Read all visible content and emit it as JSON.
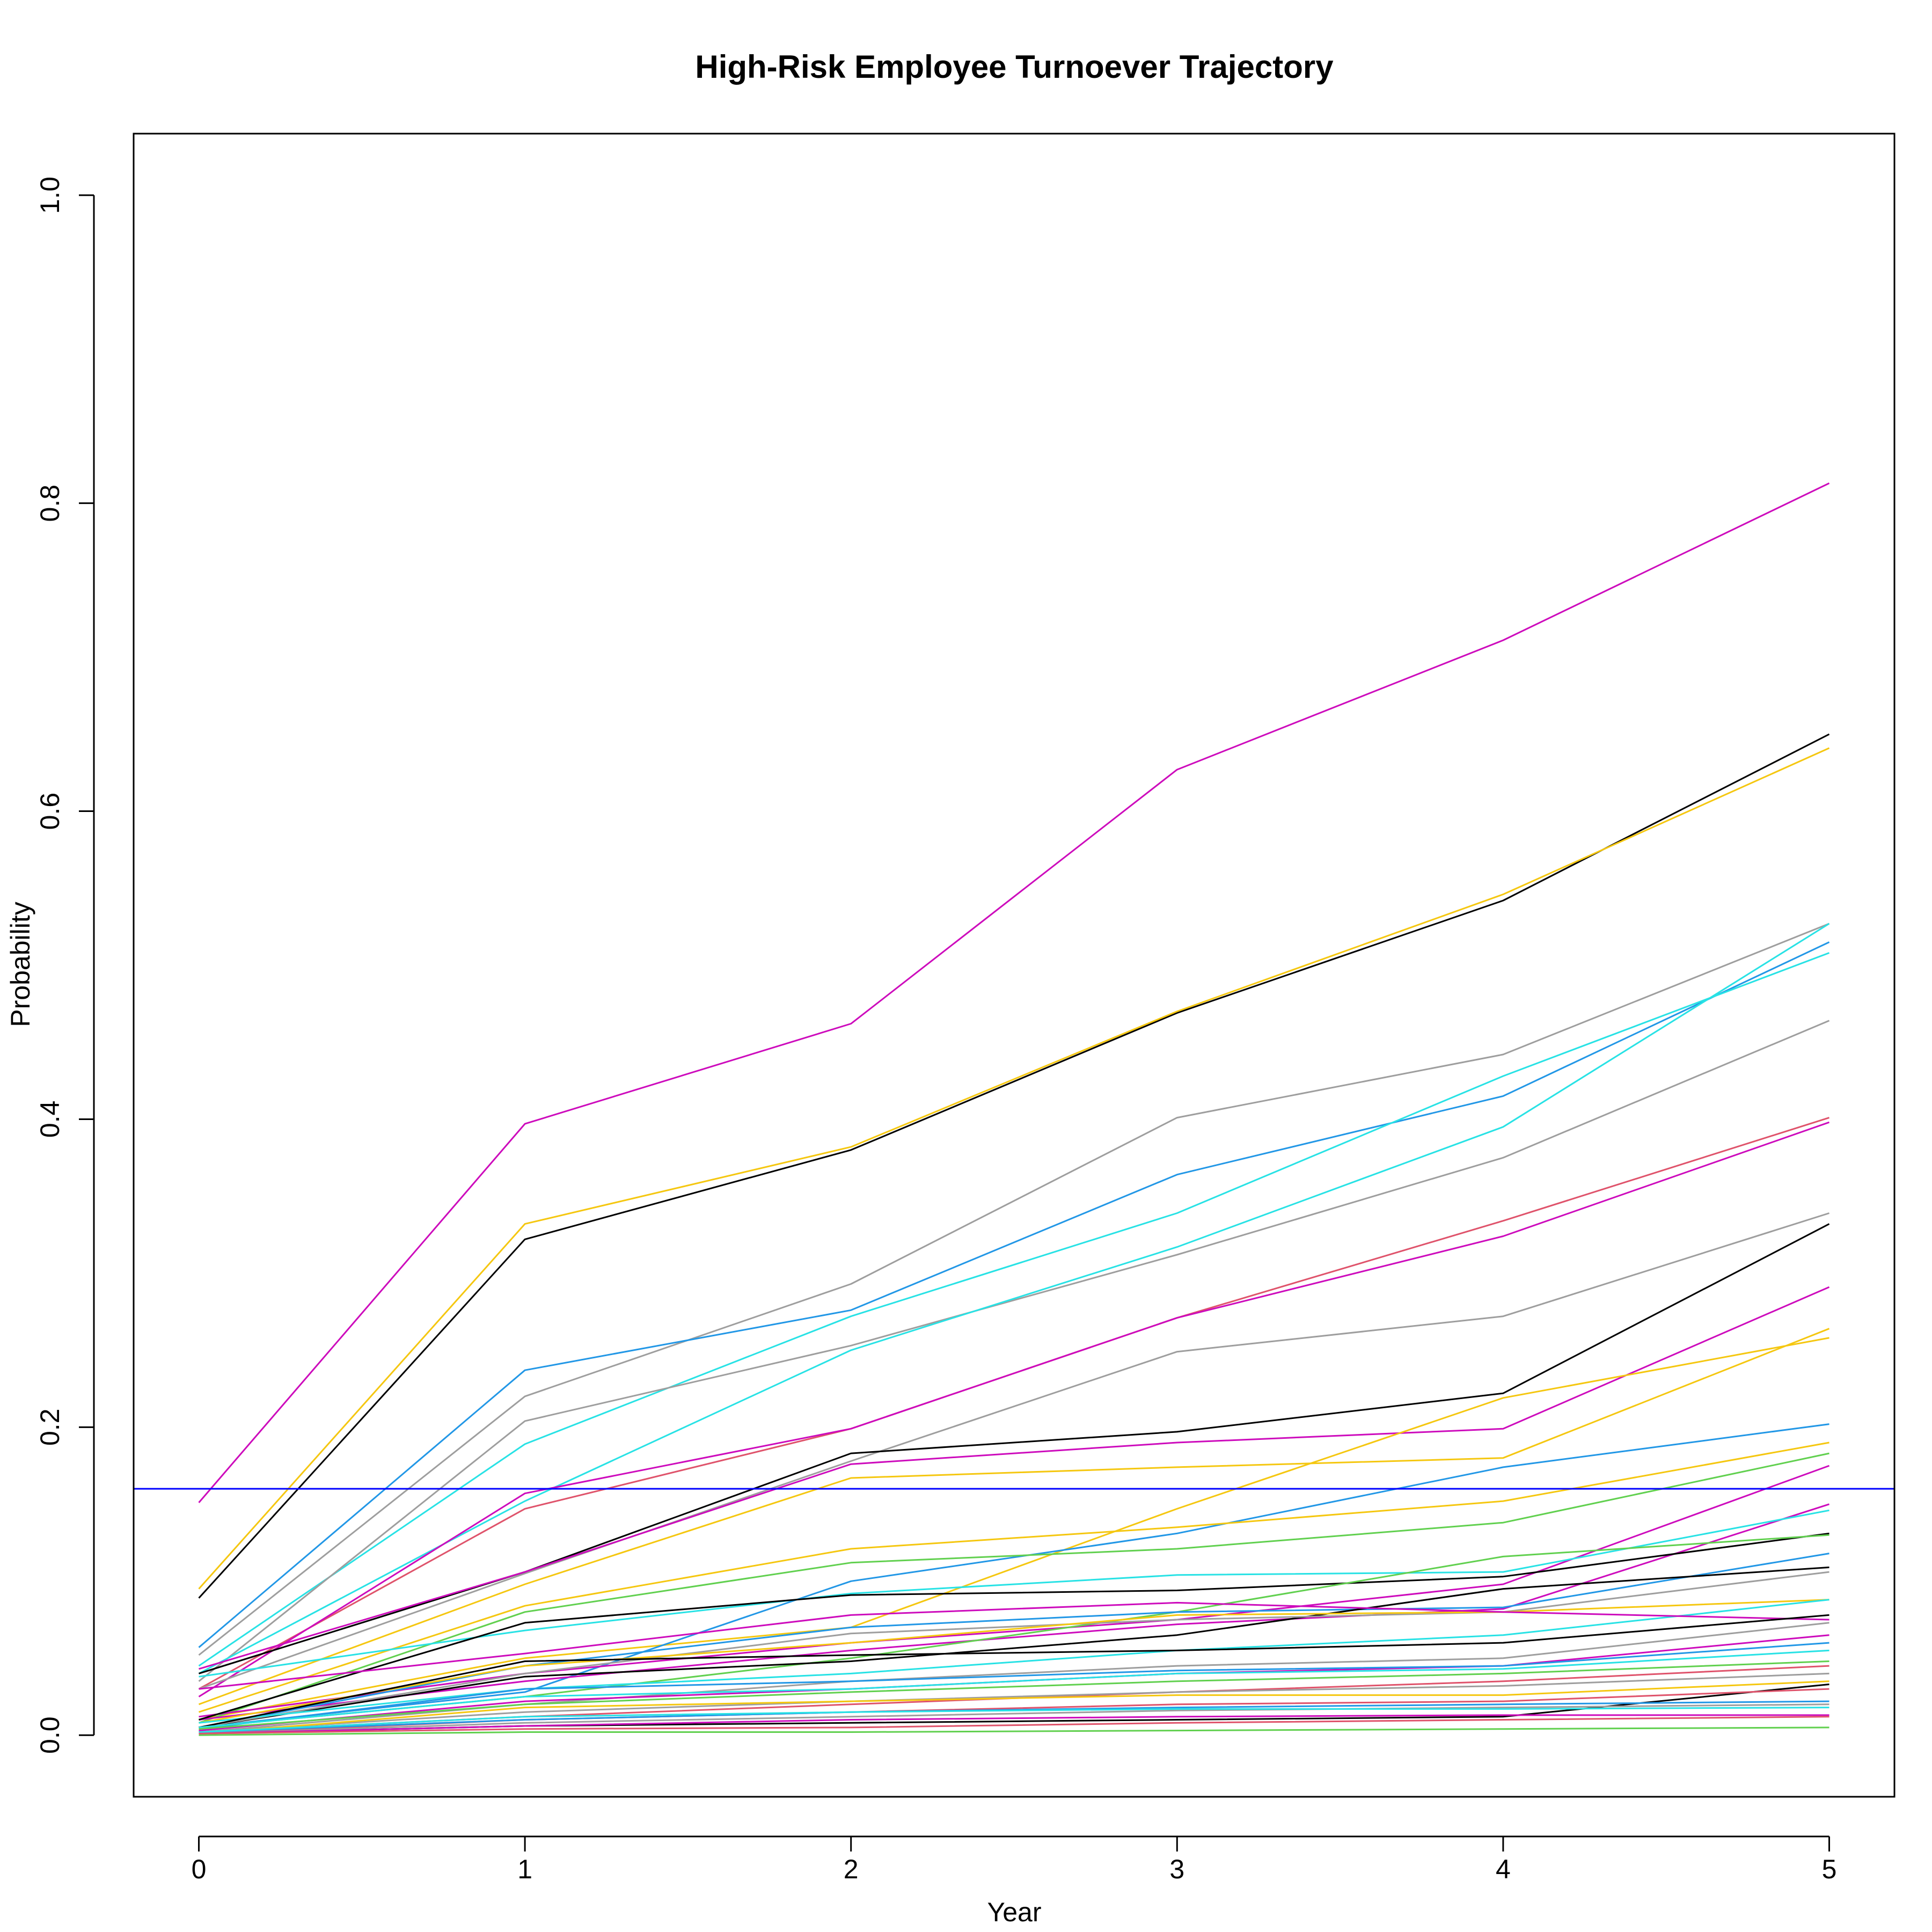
{
  "chart_data": {
    "type": "line",
    "title": "High-Risk Employee Turnoever Trajectory",
    "xlabel": "Year",
    "ylabel": "Probability",
    "xlim": [
      -0.2,
      5.2
    ],
    "ylim": [
      -0.04,
      1.04
    ],
    "x": [
      0,
      1,
      2,
      3,
      4,
      5
    ],
    "xticks": [
      "0",
      "1",
      "2",
      "3",
      "4",
      "5"
    ],
    "yticks": [
      "0.0",
      "0.2",
      "0.4",
      "0.6",
      "0.8",
      "1.0"
    ],
    "grid": false,
    "legend": "none",
    "reference_line": {
      "y": 0.16,
      "color": "#0000ff"
    },
    "series": [
      {
        "color": "#cd0bbc",
        "values": [
          0.151,
          0.397,
          0.462,
          0.627,
          0.711,
          0.813
        ]
      },
      {
        "color": "#000000",
        "values": [
          0.089,
          0.322,
          0.38,
          0.469,
          0.542,
          0.65
        ]
      },
      {
        "color": "#f5c710",
        "values": [
          0.095,
          0.332,
          0.382,
          0.47,
          0.546,
          0.641
        ]
      },
      {
        "color": "#9e9e9e",
        "values": [
          0.052,
          0.22,
          0.293,
          0.401,
          0.442,
          0.527
        ]
      },
      {
        "color": "#2297e6",
        "values": [
          0.057,
          0.237,
          0.276,
          0.364,
          0.415,
          0.515
        ]
      },
      {
        "color": "#28e2e5",
        "values": [
          0.045,
          0.189,
          0.272,
          0.339,
          0.428,
          0.508
        ]
      },
      {
        "color": "#9e9e9e",
        "values": [
          0.035,
          0.204,
          0.253,
          0.312,
          0.375,
          0.464
        ]
      },
      {
        "color": "#28e2e5",
        "values": [
          0.04,
          0.152,
          0.25,
          0.317,
          0.395,
          0.527
        ]
      },
      {
        "color": "#df536b",
        "values": [
          0.03,
          0.147,
          0.199,
          0.271,
          0.334,
          0.401
        ]
      },
      {
        "color": "#cd0bbc",
        "values": [
          0.025,
          0.157,
          0.199,
          0.271,
          0.324,
          0.398
        ]
      },
      {
        "color": "#9e9e9e",
        "values": [
          0.03,
          0.105,
          0.178,
          0.249,
          0.272,
          0.339
        ]
      },
      {
        "color": "#000000",
        "values": [
          0.04,
          0.106,
          0.183,
          0.197,
          0.222,
          0.332
        ]
      },
      {
        "color": "#cd0bbc",
        "values": [
          0.043,
          0.106,
          0.176,
          0.19,
          0.199,
          0.291
        ]
      },
      {
        "color": "#f5c710",
        "values": [
          0.02,
          0.098,
          0.167,
          0.174,
          0.18,
          0.264
        ]
      },
      {
        "color": "#f5c710",
        "values": [
          0.01,
          0.05,
          0.07,
          0.147,
          0.219,
          0.258
        ]
      },
      {
        "color": "#2297e6",
        "values": [
          0.005,
          0.028,
          0.1,
          0.131,
          0.174,
          0.202
        ]
      },
      {
        "color": "#f5c710",
        "values": [
          0.015,
          0.084,
          0.121,
          0.135,
          0.152,
          0.19
        ]
      },
      {
        "color": "#61d04f",
        "values": [
          0.008,
          0.08,
          0.112,
          0.121,
          0.138,
          0.183
        ]
      },
      {
        "color": "#cd0bbc",
        "values": [
          0.012,
          0.04,
          0.06,
          0.075,
          0.098,
          0.175
        ]
      },
      {
        "color": "#cd0bbc",
        "values": [
          0.01,
          0.035,
          0.055,
          0.072,
          0.082,
          0.15
        ]
      },
      {
        "color": "#28e2e5",
        "values": [
          0.038,
          0.068,
          0.092,
          0.104,
          0.106,
          0.146
        ]
      },
      {
        "color": "#000000",
        "values": [
          0.01,
          0.073,
          0.091,
          0.094,
          0.103,
          0.131
        ]
      },
      {
        "color": "#61d04f",
        "values": [
          0.005,
          0.025,
          0.05,
          0.08,
          0.116,
          0.13
        ]
      },
      {
        "color": "#2297e6",
        "values": [
          0.005,
          0.045,
          0.07,
          0.08,
          0.083,
          0.118
        ]
      },
      {
        "color": "#000000",
        "values": [
          0.005,
          0.038,
          0.048,
          0.065,
          0.095,
          0.109
        ]
      },
      {
        "color": "#9e9e9e",
        "values": [
          0.005,
          0.04,
          0.066,
          0.075,
          0.08,
          0.106
        ]
      },
      {
        "color": "#f5c710",
        "values": [
          0.008,
          0.045,
          0.06,
          0.078,
          0.08,
          0.088
        ]
      },
      {
        "color": "#28e2e5",
        "values": [
          0.008,
          0.03,
          0.04,
          0.055,
          0.065,
          0.088
        ]
      },
      {
        "color": "#cd0bbc",
        "values": [
          0.03,
          0.053,
          0.078,
          0.086,
          0.08,
          0.075
        ]
      },
      {
        "color": "#000000",
        "values": [
          0.005,
          0.048,
          0.052,
          0.055,
          0.06,
          0.078
        ]
      },
      {
        "color": "#9e9e9e",
        "values": [
          0.002,
          0.02,
          0.035,
          0.045,
          0.05,
          0.073
        ]
      },
      {
        "color": "#cd0bbc",
        "values": [
          0.003,
          0.022,
          0.03,
          0.04,
          0.045,
          0.065
        ]
      },
      {
        "color": "#2297e6",
        "values": [
          0.004,
          0.03,
          0.035,
          0.042,
          0.045,
          0.06
        ]
      },
      {
        "color": "#28e2e5",
        "values": [
          0.005,
          0.025,
          0.03,
          0.04,
          0.043,
          0.055
        ]
      },
      {
        "color": "#61d04f",
        "values": [
          0.004,
          0.02,
          0.028,
          0.035,
          0.04,
          0.048
        ]
      },
      {
        "color": "#df536b",
        "values": [
          0.002,
          0.012,
          0.02,
          0.028,
          0.035,
          0.045
        ]
      },
      {
        "color": "#9e9e9e",
        "values": [
          0.002,
          0.015,
          0.022,
          0.028,
          0.032,
          0.04
        ]
      },
      {
        "color": "#f5c710",
        "values": [
          0.001,
          0.018,
          0.022,
          0.026,
          0.026,
          0.035
        ]
      },
      {
        "color": "#000000",
        "values": [
          0.001,
          0.006,
          0.008,
          0.01,
          0.012,
          0.033
        ]
      },
      {
        "color": "#df536b",
        "values": [
          0.001,
          0.01,
          0.015,
          0.02,
          0.022,
          0.03
        ]
      },
      {
        "color": "#2297e6",
        "values": [
          0.002,
          0.01,
          0.015,
          0.018,
          0.02,
          0.022
        ]
      },
      {
        "color": "#9e9e9e",
        "values": [
          0.001,
          0.008,
          0.012,
          0.016,
          0.018,
          0.02
        ]
      },
      {
        "color": "#28e2e5",
        "values": [
          0.002,
          0.012,
          0.015,
          0.017,
          0.017,
          0.018
        ]
      },
      {
        "color": "#cd0bbc",
        "values": [
          0.001,
          0.006,
          0.01,
          0.012,
          0.013,
          0.013
        ]
      },
      {
        "color": "#df536b",
        "values": [
          0.001,
          0.004,
          0.005,
          0.008,
          0.01,
          0.012
        ]
      },
      {
        "color": "#61d04f",
        "values": [
          0.0,
          0.002,
          0.002,
          0.003,
          0.004,
          0.005
        ]
      }
    ]
  }
}
